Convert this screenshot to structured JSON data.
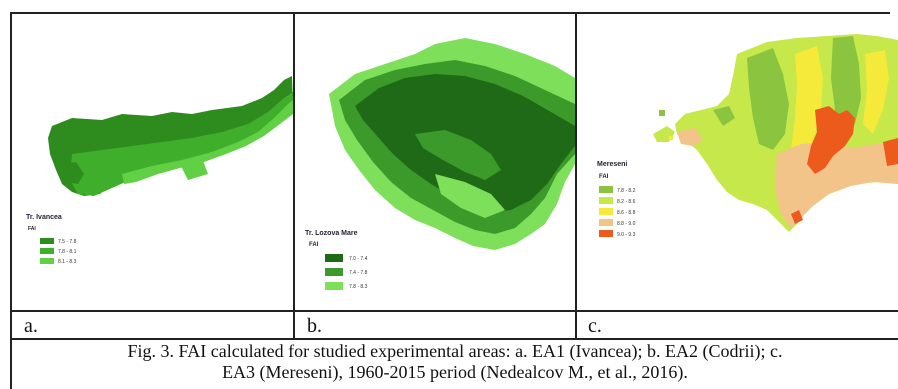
{
  "panels": [
    {
      "id": "a",
      "label": "a.",
      "legend": {
        "title": "Tr. Ivancea",
        "subtitle": "FAI",
        "classes": [
          {
            "range": "7.5 - 7.8",
            "color": "#2e8b1e"
          },
          {
            "range": "7.8 - 8.1",
            "color": "#3fae2a"
          },
          {
            "range": "8.1 - 8.3",
            "color": "#62d044"
          }
        ]
      }
    },
    {
      "id": "b",
      "label": "b.",
      "legend": {
        "title": "Tr. Lozova Mare",
        "subtitle": "FAI",
        "classes": [
          {
            "range": "7.0 - 7.4",
            "color": "#1f6a17"
          },
          {
            "range": "7.4 - 7.8",
            "color": "#3b9a29"
          },
          {
            "range": "7.8 - 8.3",
            "color": "#7ee05a"
          }
        ]
      }
    },
    {
      "id": "c",
      "label": "c.",
      "legend": {
        "title": "Mereseni",
        "subtitle": "FAI",
        "classes": [
          {
            "range": "7.8 - 8.2",
            "color": "#8bc53f"
          },
          {
            "range": "8.2 - 8.6",
            "color": "#c6e84a"
          },
          {
            "range": "8.6 - 8.8",
            "color": "#f5ea3a"
          },
          {
            "range": "8.8 - 9.0",
            "color": "#f2c48a"
          },
          {
            "range": "9.0 - 9.3",
            "color": "#ec5a1c"
          }
        ]
      }
    }
  ],
  "caption": {
    "line1": "Fig. 3. FAI calculated for studied experimental areas: a. EA1 (Ivancea); b. EA2 (Codrii); c.",
    "line2": "EA3 (Mereseni), 1960-2015 period (Nedealcov M., et al., 2016)."
  }
}
